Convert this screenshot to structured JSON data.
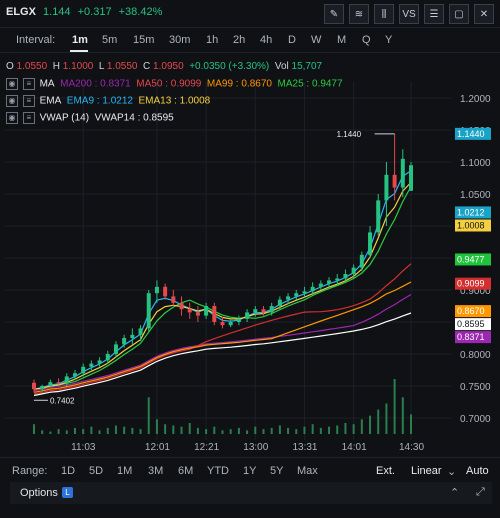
{
  "header": {
    "symbol": "ELGX",
    "price": "1.144",
    "change": "+0.317",
    "change_pct": "+38.42%"
  },
  "toolbar": {
    "icons": [
      "pencil-icon",
      "indicators-icon",
      "candles-icon",
      "compare-icon",
      "settings-icon",
      "fullscreen-icon",
      "close-icon"
    ],
    "compare_label": "VS"
  },
  "intervals": {
    "label": "Interval:",
    "items": [
      "1m",
      "5m",
      "15m",
      "30m",
      "1h",
      "2h",
      "4h",
      "D",
      "W",
      "M",
      "Q",
      "Y"
    ],
    "active": "1m"
  },
  "ohlc": {
    "o_label": "O",
    "o": "1.0550",
    "h_label": "H",
    "h": "1.1000",
    "l_label": "L",
    "l": "1.0550",
    "c_label": "C",
    "c": "1.0950",
    "change": "+0.0350 (+3.30%)",
    "vol_label": "Vol",
    "vol": "15,707"
  },
  "studies": {
    "ma": {
      "name": "MA",
      "items": [
        "MA200 : 0.8371",
        "MA50 : 0.9099",
        "MA99 : 0.8670",
        "MA25 : 0.9477"
      ]
    },
    "ema": {
      "name": "EMA",
      "items": [
        "EMA9 : 1.0212",
        "EMA13 : 1.0008"
      ]
    },
    "vwap": {
      "name": "VWAP (14)",
      "items": [
        "VWAP14 : 0.8595"
      ]
    }
  },
  "colors": {
    "up": "#26c281",
    "down": "#e5484d",
    "ma200": "#9c27b0",
    "ma50": "#d32f2f",
    "ma99": "#ff9800",
    "ma25": "#2ecc40",
    "ema9": "#29b6f6",
    "ema13": "#f4d03f",
    "vwap": "#ffffff"
  },
  "chart_data": {
    "type": "candlestick",
    "x_ticks": [
      "11:03",
      "12:01",
      "12:21",
      "13:00",
      "13:31",
      "14:01",
      "14:30"
    ],
    "y_ticks": [
      "1.2000",
      "1.1500",
      "1.1000",
      "1.0500",
      "1.0000",
      "0.9500",
      "0.9000",
      "0.8500",
      "0.8000",
      "0.7500",
      "0.7000"
    ],
    "ylim": [
      0.675,
      1.225
    ],
    "high_marker": "1.1440",
    "low_marker": "0.7402",
    "price_tags": [
      {
        "label": "1.1440",
        "value": 1.144,
        "color": "#1aa3c9"
      },
      {
        "label": "1.0212",
        "value": 1.0212,
        "color": "#1aa3c9"
      },
      {
        "label": "1.0008",
        "value": 1.0008,
        "color": "#f4d03f"
      },
      {
        "label": "0.9477",
        "value": 0.9477,
        "color": "#1fc43a"
      },
      {
        "label": "0.9099",
        "value": 0.9099,
        "color": "#d32f2f"
      },
      {
        "label": "0.8670",
        "value": 0.867,
        "color": "#ff9800"
      },
      {
        "label": "0.8595",
        "value": 0.8595,
        "color": "#ffffff"
      },
      {
        "label": "0.8371",
        "value": 0.8371,
        "color": "#9c27b0"
      }
    ],
    "candles": [
      [
        0.755,
        0.76,
        0.74,
        0.745
      ],
      [
        0.745,
        0.752,
        0.741,
        0.75
      ],
      [
        0.75,
        0.76,
        0.748,
        0.756
      ],
      [
        0.756,
        0.762,
        0.752,
        0.755
      ],
      [
        0.755,
        0.77,
        0.75,
        0.765
      ],
      [
        0.765,
        0.775,
        0.76,
        0.77
      ],
      [
        0.77,
        0.785,
        0.765,
        0.78
      ],
      [
        0.78,
        0.79,
        0.775,
        0.785
      ],
      [
        0.785,
        0.795,
        0.78,
        0.79
      ],
      [
        0.79,
        0.805,
        0.785,
        0.8
      ],
      [
        0.8,
        0.82,
        0.795,
        0.815
      ],
      [
        0.815,
        0.83,
        0.81,
        0.825
      ],
      [
        0.825,
        0.84,
        0.815,
        0.83
      ],
      [
        0.83,
        0.845,
        0.82,
        0.84
      ],
      [
        0.84,
        0.9,
        0.835,
        0.895
      ],
      [
        0.895,
        0.915,
        0.88,
        0.905
      ],
      [
        0.905,
        0.91,
        0.885,
        0.89
      ],
      [
        0.89,
        0.9,
        0.875,
        0.88
      ],
      [
        0.88,
        0.89,
        0.86,
        0.87
      ],
      [
        0.87,
        0.88,
        0.855,
        0.865
      ],
      [
        0.865,
        0.875,
        0.85,
        0.86
      ],
      [
        0.86,
        0.88,
        0.855,
        0.875
      ],
      [
        0.875,
        0.88,
        0.845,
        0.85
      ],
      [
        0.85,
        0.858,
        0.84,
        0.845
      ],
      [
        0.845,
        0.855,
        0.842,
        0.85
      ],
      [
        0.85,
        0.86,
        0.845,
        0.855
      ],
      [
        0.855,
        0.87,
        0.85,
        0.865
      ],
      [
        0.865,
        0.875,
        0.858,
        0.87
      ],
      [
        0.87,
        0.875,
        0.86,
        0.865
      ],
      [
        0.865,
        0.88,
        0.86,
        0.875
      ],
      [
        0.875,
        0.89,
        0.87,
        0.885
      ],
      [
        0.885,
        0.895,
        0.878,
        0.89
      ],
      [
        0.89,
        0.9,
        0.885,
        0.895
      ],
      [
        0.895,
        0.905,
        0.888,
        0.898
      ],
      [
        0.898,
        0.912,
        0.892,
        0.905
      ],
      [
        0.905,
        0.915,
        0.9,
        0.91
      ],
      [
        0.91,
        0.92,
        0.902,
        0.915
      ],
      [
        0.915,
        0.925,
        0.908,
        0.918
      ],
      [
        0.918,
        0.932,
        0.912,
        0.925
      ],
      [
        0.925,
        0.94,
        0.918,
        0.935
      ],
      [
        0.935,
        0.96,
        0.93,
        0.955
      ],
      [
        0.955,
        1.0,
        0.95,
        0.99
      ],
      [
        0.99,
        1.05,
        0.985,
        1.04
      ],
      [
        1.04,
        1.1,
        1.0,
        1.08
      ],
      [
        1.08,
        1.144,
        1.04,
        1.06
      ],
      [
        1.06,
        1.12,
        1.045,
        1.105
      ],
      [
        1.055,
        1.1,
        1.055,
        1.095
      ]
    ],
    "volumes": [
      8,
      3,
      2,
      4,
      3,
      5,
      4,
      6,
      3,
      5,
      7,
      6,
      5,
      4,
      30,
      12,
      8,
      7,
      6,
      9,
      5,
      4,
      6,
      3,
      4,
      5,
      3,
      6,
      4,
      5,
      7,
      5,
      4,
      6,
      8,
      5,
      6,
      7,
      9,
      8,
      12,
      15,
      20,
      25,
      45,
      30,
      16
    ]
  },
  "range": {
    "label": "Range:",
    "items": [
      "1D",
      "5D",
      "1M",
      "3M",
      "6M",
      "YTD",
      "1Y",
      "5Y",
      "Max"
    ],
    "ext": "Ext.",
    "scale": "Linear",
    "auto": "Auto"
  },
  "options": {
    "title": "Options",
    "badge": "L"
  }
}
